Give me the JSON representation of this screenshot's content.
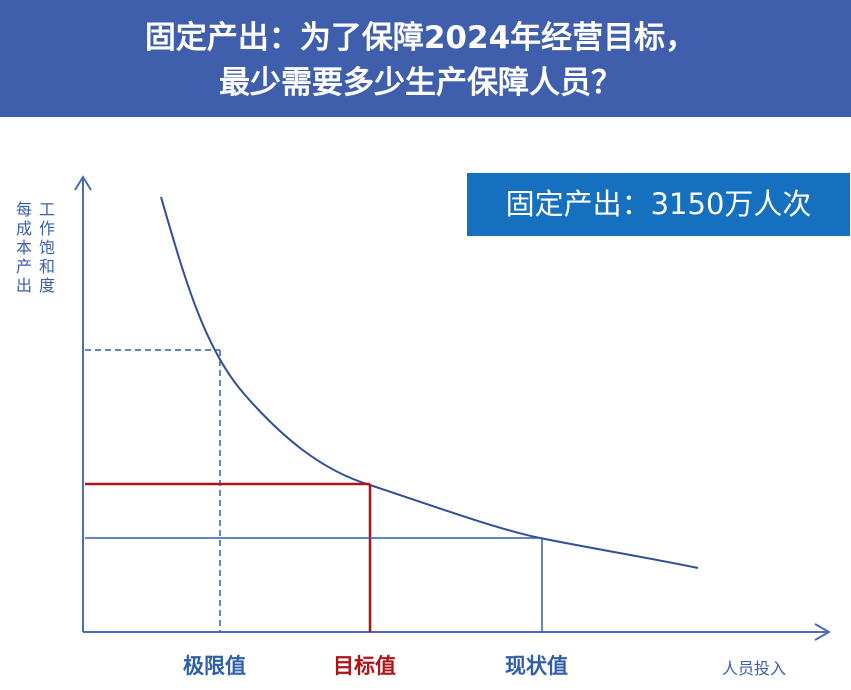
{
  "title": {
    "line1": "固定产出：为了保障2024年经营目标，",
    "line2": "最少需要多少生产保障人员？"
  },
  "callout": {
    "label": "固定产出：3150万人次"
  },
  "axes": {
    "y_label_col1": "工作饱和度",
    "y_label_col2": "每成本产出",
    "x_label": "人员投入"
  },
  "markers": [
    {
      "label": "极限值",
      "color": "#2f5fa8",
      "style": "dashed"
    },
    {
      "label": "目标值",
      "color": "#b0121a",
      "style": "solid"
    },
    {
      "label": "现状值",
      "color": "#2f5fa8",
      "style": "solid"
    }
  ],
  "colors": {
    "banner": "#3f5fad",
    "callout": "#1570c0",
    "curve": "#2f4f96",
    "target": "#b0121a",
    "axis": "#3a5fae"
  }
}
